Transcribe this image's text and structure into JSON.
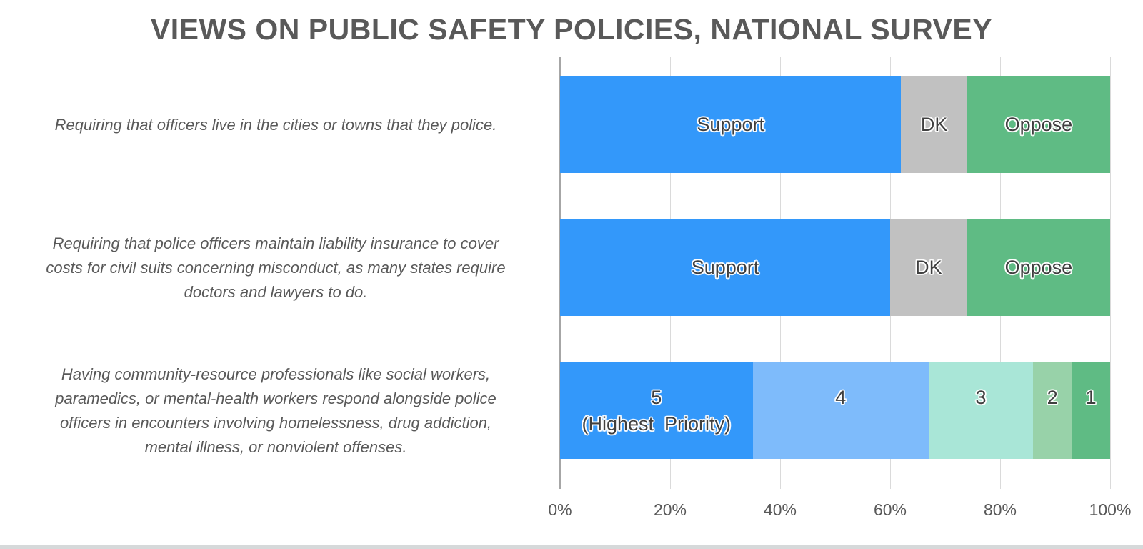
{
  "title": "VIEWS ON PUBLIC SAFETY POLICIES, NATIONAL SURVEY",
  "colors": {
    "support_blue": "#3398FA",
    "dk_gray": "#C1C1C1",
    "oppose_green": "#5FBB84",
    "priority4_light_blue": "#7EBBFB",
    "priority3_mint": "#A9E6D7",
    "priority2_light_green": "#98D2A9",
    "gridline": "#DADADA",
    "axis_line": "#A6A6A6",
    "label_text": "#595959",
    "bar_label_text": "#3F3F3F",
    "bottom_strip": "#D6D9DA"
  },
  "chart_data": {
    "type": "bar",
    "subtype": "horizontal-100pct-stacked",
    "title": "VIEWS ON PUBLIC SAFETY POLICIES, NATIONAL SURVEY",
    "xlim": [
      0,
      100
    ],
    "x_tick_labels": [
      "0%",
      "20%",
      "40%",
      "60%",
      "80%",
      "100%"
    ],
    "grid": true,
    "legend": "none",
    "rows": [
      {
        "label_lines": [
          "Requiring that officers live in the cities or towns that they police."
        ],
        "segments": [
          {
            "name": "Support",
            "label": "Support",
            "value": 62,
            "color": "#3398FA"
          },
          {
            "name": "DK",
            "label": "DK",
            "value": 12,
            "color": "#C1C1C1"
          },
          {
            "name": "Oppose",
            "label": "Oppose",
            "value": 26,
            "color": "#5FBB84"
          }
        ]
      },
      {
        "label_lines": [
          "Requiring that police officers maintain liability insurance to cover",
          "costs for civil suits concerning misconduct, as many states require",
          "doctors and lawyers to do."
        ],
        "segments": [
          {
            "name": "Support",
            "label": "Support",
            "value": 60,
            "color": "#3398FA"
          },
          {
            "name": "DK",
            "label": "DK",
            "value": 14,
            "color": "#C1C1C1"
          },
          {
            "name": "Oppose",
            "label": "Oppose",
            "value": 26,
            "color": "#5FBB84"
          }
        ]
      },
      {
        "label_lines": [
          "Having community-resource professionals like social workers,",
          "paramedics, or mental-health workers respond alongside police",
          "officers in encounters involving homelessness, drug addiction,",
          "mental illness, or nonviolent offenses."
        ],
        "segments": [
          {
            "name": "5-highest-priority",
            "label": "5",
            "sublabel": "(Highest  Priority)",
            "value": 35,
            "color": "#3398FA"
          },
          {
            "name": "4",
            "label": "4",
            "value": 32,
            "color": "#7EBBFB"
          },
          {
            "name": "3",
            "label": "3",
            "value": 19,
            "color": "#A9E6D7"
          },
          {
            "name": "2",
            "label": "2",
            "value": 7,
            "color": "#98D2A9"
          },
          {
            "name": "1",
            "label": "1",
            "value": 7,
            "color": "#5FBB84"
          }
        ]
      }
    ]
  }
}
